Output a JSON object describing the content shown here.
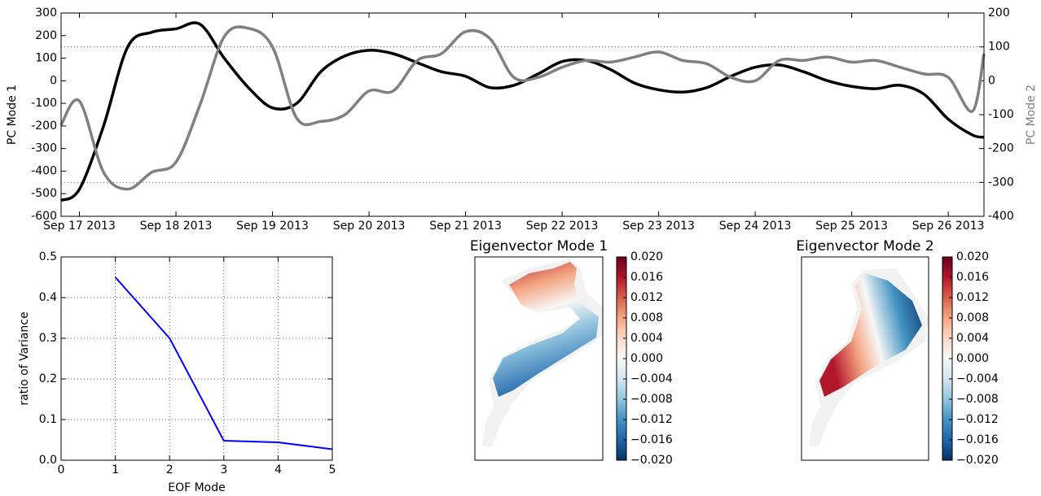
{
  "chart_data": [
    {
      "type": "line",
      "x": [
        -0.19,
        0,
        0.25,
        0.5,
        0.75,
        1,
        1.25,
        1.5,
        1.75,
        2,
        2.25,
        2.5,
        2.75,
        3,
        3.25,
        3.5,
        3.75,
        4,
        4.25,
        4.5,
        4.75,
        5,
        5.25,
        5.5,
        5.75,
        6,
        6.25,
        6.5,
        6.75,
        7,
        7.25,
        7.5,
        7.75,
        8,
        8.25,
        8.5,
        8.75,
        9,
        9.25,
        9.37
      ],
      "xlim": [
        -0.19,
        9.37
      ],
      "xticks": [
        {
          "value": 0,
          "label": "Sep 17 2013"
        },
        {
          "value": 1,
          "label": "Sep 18 2013"
        },
        {
          "value": 2,
          "label": "Sep 19 2013"
        },
        {
          "value": 3,
          "label": "Sep 20 2013"
        },
        {
          "value": 4,
          "label": "Sep 21 2013"
        },
        {
          "value": 5,
          "label": "Sep 22 2013"
        },
        {
          "value": 6,
          "label": "Sep 23 2013"
        },
        {
          "value": 7,
          "label": "Sep 24 2013"
        },
        {
          "value": 8,
          "label": "Sep 25 2013"
        },
        {
          "value": 9,
          "label": "Sep 26 2013"
        }
      ],
      "ylabel": "PC Mode 1",
      "ylim": [
        -600,
        300
      ],
      "yticks": [
        -600,
        -500,
        -400,
        -300,
        -200,
        -100,
        0,
        100,
        200,
        300
      ],
      "y2label": "PC Mode 2",
      "y2lim": [
        -400,
        200
      ],
      "y2ticks": [
        -400,
        -300,
        -200,
        -100,
        0,
        100,
        200
      ],
      "y2_hlines": [
        100,
        -300
      ],
      "series": [
        {
          "name": "PC Mode 1",
          "color": "#000000",
          "values": [
            -530,
            -480,
            -200,
            150,
            215,
            230,
            250,
            100,
            -30,
            -120,
            -100,
            40,
            110,
            135,
            120,
            80,
            40,
            20,
            -30,
            -20,
            30,
            85,
            90,
            50,
            -10,
            -40,
            -50,
            -30,
            20,
            60,
            70,
            40,
            0,
            -25,
            -35,
            -20,
            -60,
            -170,
            -240,
            -250
          ]
        },
        {
          "name": "PC Mode 2",
          "color": "#808080",
          "axis": "y2",
          "values": [
            -130,
            -60,
            -270,
            -320,
            -270,
            -240,
            -70,
            130,
            155,
            100,
            -110,
            -120,
            -100,
            -30,
            -30,
            60,
            80,
            145,
            125,
            10,
            10,
            40,
            60,
            55,
            70,
            85,
            60,
            50,
            10,
            0,
            60,
            60,
            70,
            55,
            60,
            40,
            20,
            10,
            -90,
            80
          ]
        }
      ]
    },
    {
      "type": "line",
      "xlabel": "EOF Mode",
      "ylabel": "ratio of Variance",
      "x": [
        1,
        2,
        3,
        4,
        5
      ],
      "xlim": [
        0,
        5
      ],
      "xticks": [
        0,
        1,
        2,
        3,
        4,
        5
      ],
      "ylim": [
        0,
        0.5
      ],
      "yticks": [
        {
          "value": 0,
          "label": "0.0"
        },
        0.1,
        0.2,
        0.3,
        0.4,
        0.5
      ],
      "grid": true,
      "series": [
        {
          "color": "#0000ff",
          "values": [
            0.45,
            0.3,
            0.048,
            0.044,
            0.027
          ]
        }
      ]
    },
    {
      "type": "map",
      "title": "Eigenvector Mode 1",
      "clim": [
        -0.02,
        0.02
      ],
      "colormap": [
        "#053061",
        "#2166ac",
        "#4393c3",
        "#92c5de",
        "#d1e5f0",
        "#f7f7f7",
        "#fddbc7",
        "#f4a582",
        "#d6604d",
        "#b2182b",
        "#67001f"
      ],
      "cticks": [
        {
          "value": 0.02,
          "label": "0.020"
        },
        {
          "value": 0.016,
          "label": "0.016"
        },
        {
          "value": 0.012,
          "label": "0.012"
        },
        {
          "value": 0.008,
          "label": "0.008"
        },
        {
          "value": 0.004,
          "label": "0.004"
        },
        {
          "value": 0,
          "label": "0.000"
        },
        {
          "value": -0.004,
          "label": "−0.004"
        },
        {
          "value": -0.008,
          "label": "−0.008"
        },
        {
          "value": -0.012,
          "label": "−0.012"
        },
        {
          "value": -0.016,
          "label": "−0.016"
        },
        {
          "value": -0.02,
          "label": "−0.020"
        }
      ]
    },
    {
      "type": "map",
      "title": "Eigenvector Mode 2",
      "clim": [
        -0.02,
        0.02
      ],
      "colormap": [
        "#053061",
        "#2166ac",
        "#4393c3",
        "#92c5de",
        "#d1e5f0",
        "#f7f7f7",
        "#fddbc7",
        "#f4a582",
        "#d6604d",
        "#b2182b",
        "#67001f"
      ],
      "cticks": [
        {
          "value": 0.02,
          "label": "0.020"
        },
        {
          "value": 0.016,
          "label": "0.016"
        },
        {
          "value": 0.012,
          "label": "0.012"
        },
        {
          "value": 0.008,
          "label": "0.008"
        },
        {
          "value": 0.004,
          "label": "0.004"
        },
        {
          "value": 0,
          "label": "0.000"
        },
        {
          "value": -0.004,
          "label": "−0.004"
        },
        {
          "value": -0.008,
          "label": "−0.008"
        },
        {
          "value": -0.012,
          "label": "−0.012"
        },
        {
          "value": -0.016,
          "label": "−0.016"
        },
        {
          "value": -0.02,
          "label": "−0.020"
        }
      ]
    }
  ]
}
